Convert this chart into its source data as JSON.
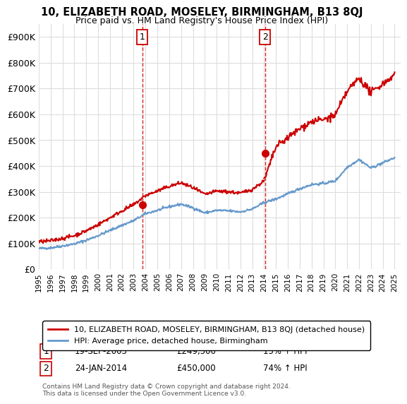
{
  "title": "10, ELIZABETH ROAD, MOSELEY, BIRMINGHAM, B13 8QJ",
  "subtitle": "Price paid vs. HM Land Registry's House Price Index (HPI)",
  "house_label": "10, ELIZABETH ROAD, MOSELEY, BIRMINGHAM, B13 8QJ (detached house)",
  "hpi_label": "HPI: Average price, detached house, Birmingham",
  "house_color": "#cc0000",
  "hpi_color": "#6699cc",
  "background_color": "#ffffff",
  "grid_color": "#dddddd",
  "ylim": [
    0,
    950000
  ],
  "yticks": [
    0,
    100000,
    200000,
    300000,
    400000,
    500000,
    600000,
    700000,
    800000,
    900000
  ],
  "ytick_labels": [
    "£0",
    "£100K",
    "£200K",
    "£300K",
    "£400K",
    "£500K",
    "£600K",
    "£700K",
    "£800K",
    "£900K"
  ],
  "transaction1": {
    "date": "19-SEP-2003",
    "price": 249500,
    "hpi_pct": "15%",
    "label": "1"
  },
  "transaction2": {
    "date": "24-JAN-2014",
    "price": 450000,
    "hpi_pct": "74%",
    "label": "2"
  },
  "t1_x": 2003.72,
  "t2_x": 2014.07,
  "footer": "Contains HM Land Registry data © Crown copyright and database right 2024.\nThis data is licensed under the Open Government Licence v3.0.",
  "xmin": 1995,
  "xmax": 2025.5
}
